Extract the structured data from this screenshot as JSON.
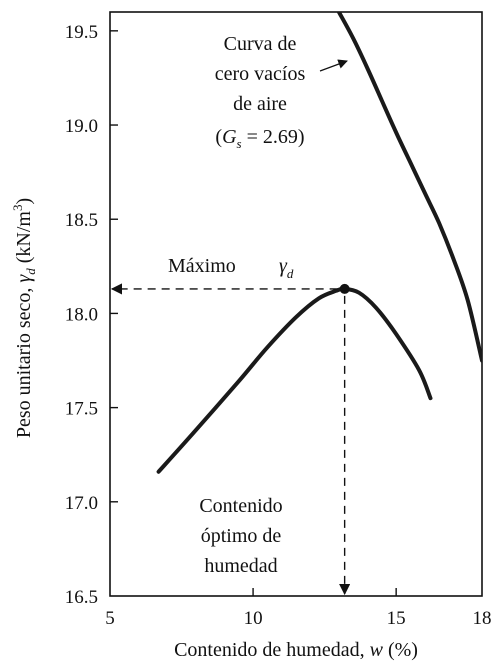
{
  "chart_data": {
    "type": "line",
    "xlabel": {
      "prefix": "Contenido de humedad, ",
      "var": "w",
      "suffix": " (%)"
    },
    "ylabel": {
      "prefix": "Peso unitario seco, ",
      "symbol": "γ",
      "sub": "d",
      "unit_open": " (kN/m",
      "unit_sup": "3",
      "unit_close": ")"
    },
    "xlim": [
      5,
      18
    ],
    "ylim": [
      16.5,
      19.6
    ],
    "x_ticks": [
      5,
      10,
      15,
      18
    ],
    "x_tick_labels": [
      "5",
      "10",
      "15",
      "18"
    ],
    "y_ticks": [
      16.5,
      17.0,
      17.5,
      18.0,
      18.5,
      19.0,
      19.5
    ],
    "y_tick_labels": [
      "16.5",
      "17.0",
      "17.5",
      "18.0",
      "18.5",
      "19.0",
      "19.5"
    ],
    "grid": false,
    "series": [
      {
        "key": "compaction",
        "x": [
          6.7,
          8.0,
          9.5,
          10.5,
          11.5,
          12.3,
          12.9,
          13.2,
          13.7,
          14.3,
          15.0,
          15.8,
          16.2
        ],
        "y": [
          17.16,
          17.38,
          17.64,
          17.82,
          17.98,
          18.08,
          18.12,
          18.13,
          18.11,
          18.03,
          17.89,
          17.7,
          17.55
        ],
        "color": "#1a1a1a"
      },
      {
        "key": "zero_air_voids",
        "x": [
          13.0,
          13.5,
          14.0,
          14.5,
          15.0,
          15.5,
          16.0,
          16.5,
          17.0,
          17.5,
          18.0
        ],
        "y": [
          19.6,
          19.46,
          19.3,
          19.13,
          18.96,
          18.8,
          18.64,
          18.48,
          18.29,
          18.07,
          17.75
        ],
        "color": "#1a1a1a"
      }
    ],
    "peak": {
      "x": 13.2,
      "y": 18.13
    },
    "annotations": {
      "zav_lines": [
        "Curva de",
        "cero vacíos",
        "de aire"
      ],
      "gs": {
        "open": "(",
        "var": "G",
        "sub": "s",
        "value": " = 2.69)"
      },
      "max_label": "Máximo",
      "gamma_symbol": "γ",
      "gamma_sub": "d",
      "omc_lines": [
        "Contenido",
        "óptimo de",
        "humedad"
      ]
    }
  }
}
